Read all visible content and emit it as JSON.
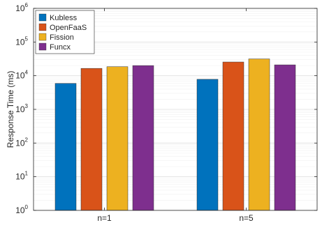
{
  "chart_data": {
    "type": "bar",
    "title": "",
    "xlabel": "",
    "ylabel": "Response Time (ms)",
    "yscale": "log",
    "ylim": [
      1,
      1000000
    ],
    "ytick_base": "10",
    "ytick_exponents": [
      "0",
      "1",
      "2",
      "3",
      "4",
      "5",
      "6"
    ],
    "grid": true,
    "legend_position": "top-left",
    "categories": [
      "n=1",
      "n=5"
    ],
    "series": [
      {
        "name": "Kubless",
        "color": "#0072BD",
        "values": [
          5900,
          7800
        ]
      },
      {
        "name": "OpenFaaS",
        "color": "#D95319",
        "values": [
          16500,
          25500
        ]
      },
      {
        "name": "Fission",
        "color": "#EDB120",
        "values": [
          18500,
          31500
        ]
      },
      {
        "name": "Funcx",
        "color": "#7E2F8E",
        "values": [
          20000,
          21000
        ]
      }
    ]
  }
}
